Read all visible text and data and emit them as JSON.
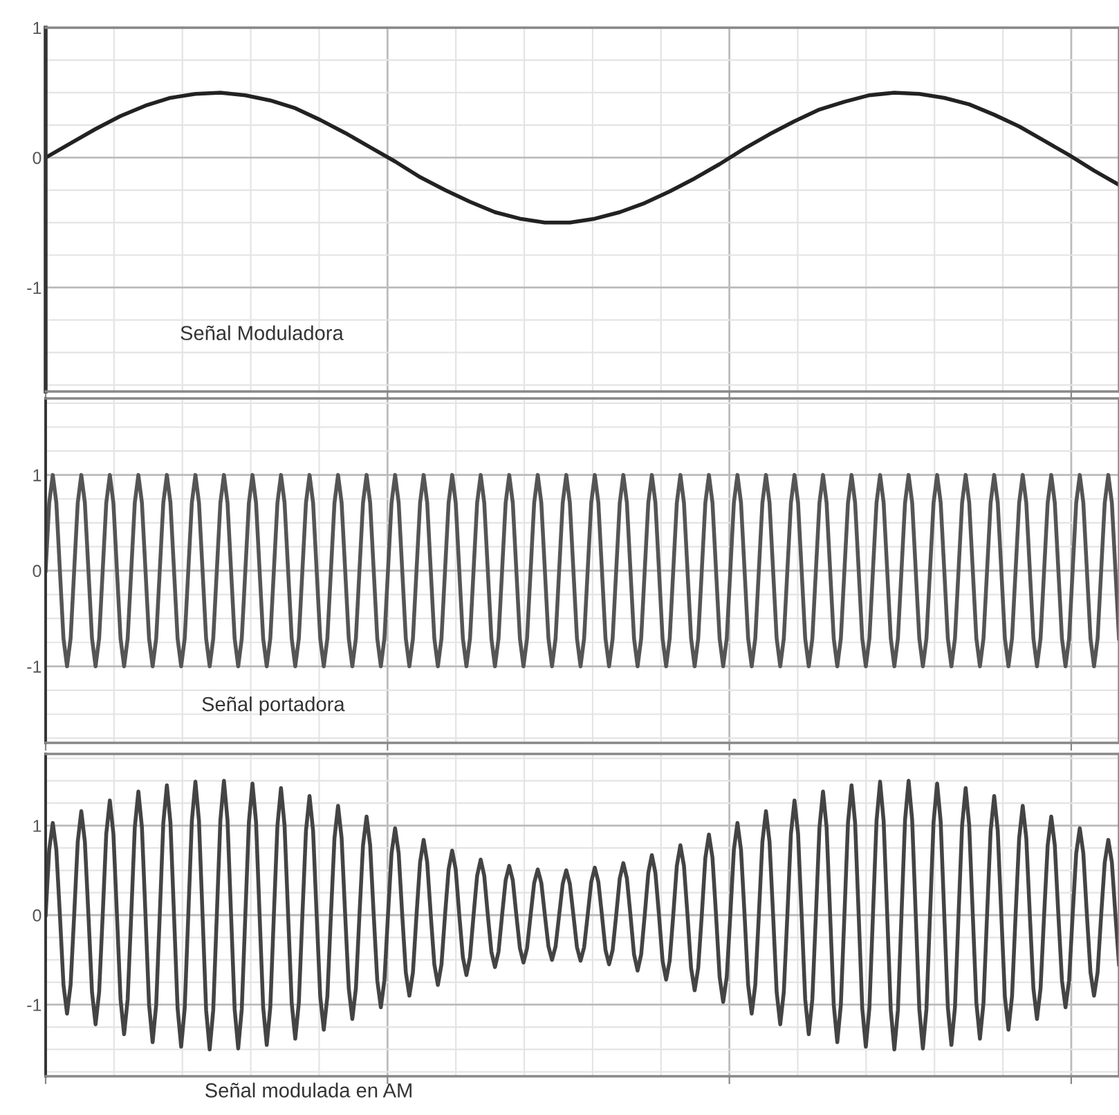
{
  "chart_data": [
    {
      "type": "line",
      "categories": [
        null,
        null,
        null,
        null,
        null,
        null,
        null,
        null,
        null,
        null,
        null,
        null,
        null,
        null,
        null,
        null,
        null,
        null,
        null,
        null,
        null,
        null,
        null,
        null,
        null,
        null,
        null,
        null,
        null,
        null,
        null,
        null,
        null,
        null,
        null,
        null,
        null,
        null,
        null,
        null,
        null,
        null,
        null,
        null
      ],
      "series": [
        {
          "color": "#222222",
          "values": [
            0,
            0.11,
            0.22,
            0.32,
            0.4,
            0.46,
            0.49,
            0.5,
            0.48,
            0.44,
            0.38,
            0.29,
            0.19,
            0.08,
            -0.03,
            -0.15,
            -0.25,
            -0.34,
            -0.42,
            -0.47,
            -0.5,
            -0.5,
            -0.47,
            -0.42,
            -0.35,
            -0.26,
            -0.16,
            -0.05,
            0.07,
            0.18,
            0.28,
            0.37,
            0.43,
            0.48,
            0.5,
            0.49,
            0.46,
            0.41,
            0.33,
            0.24,
            0.13,
            0.02,
            -0.1,
            -0.21
          ]
        }
      ],
      "ylim": [
        -1.8,
        1.0
      ],
      "yticks": [
        1,
        0,
        -1
      ],
      "grid": true,
      "tick_labels": "y",
      "annotations": [
        "Señal Moduladora"
      ]
    },
    {
      "type": "line",
      "categories": [
        null,
        null,
        null,
        null,
        null,
        null,
        null,
        null,
        null,
        null,
        null,
        null,
        null,
        null,
        null,
        null,
        null,
        null,
        null,
        null,
        null,
        null,
        null,
        null,
        null,
        null,
        null,
        null,
        null,
        null,
        null,
        null,
        null,
        null,
        null,
        null,
        null,
        null,
        null,
        null,
        null,
        null,
        null,
        null,
        null,
        null,
        null,
        null,
        null,
        null,
        null,
        null,
        null,
        null,
        null,
        null,
        null,
        null,
        null,
        null,
        null,
        null,
        null,
        null,
        null,
        null,
        null,
        null,
        null,
        null,
        null,
        null,
        null,
        null,
        null,
        null,
        null,
        null,
        null,
        null,
        null,
        null,
        null,
        null,
        null,
        null,
        null,
        null,
        null,
        null,
        null,
        null,
        null,
        null,
        null,
        null,
        null,
        null,
        null,
        null,
        null,
        null,
        null,
        null,
        null,
        null,
        null,
        null,
        null,
        null,
        null,
        null,
        null,
        null,
        null,
        null,
        null,
        null,
        null,
        null,
        null,
        null,
        null,
        null,
        null,
        null,
        null,
        null,
        null,
        null,
        null,
        null,
        null,
        null,
        null,
        null,
        null,
        null,
        null,
        null,
        null,
        null,
        null,
        null,
        null,
        null,
        null,
        null,
        null,
        null,
        null,
        null,
        null,
        null,
        null,
        null,
        null,
        null,
        null,
        null,
        null,
        null,
        null,
        null,
        null,
        null,
        null,
        null,
        null,
        null,
        null,
        null,
        null,
        null,
        null,
        null,
        null,
        null,
        null,
        null,
        null,
        null,
        null,
        null,
        null,
        null,
        null,
        null,
        null,
        null,
        null,
        null,
        null,
        null,
        null,
        null,
        null,
        null,
        null,
        null,
        null,
        null,
        null,
        null,
        null,
        null,
        null,
        null,
        null,
        null,
        null,
        null,
        null,
        null,
        null,
        null,
        null,
        null,
        null,
        null,
        null,
        null,
        null,
        null,
        null,
        null,
        null,
        null,
        null,
        null,
        null,
        null,
        null,
        null,
        null,
        null,
        null,
        null,
        null,
        null,
        null,
        null,
        null,
        null,
        null,
        null,
        null,
        null,
        null,
        null,
        null,
        null,
        null,
        null,
        null,
        null,
        null,
        null,
        null,
        null,
        null,
        null,
        null,
        null,
        null,
        null,
        null,
        null,
        null,
        null,
        null,
        null,
        null,
        null,
        null,
        null,
        null,
        null,
        null,
        null,
        null,
        null,
        null,
        null,
        null,
        null,
        null,
        null,
        null,
        null,
        null,
        null,
        null,
        null,
        null,
        null,
        null,
        null,
        null,
        null,
        null,
        null
      ],
      "series": [
        {
          "color": "#555555",
          "values": [
            0,
            0.71,
            1,
            0.71,
            0,
            -0.71,
            -1,
            -0.71,
            0,
            0.71,
            1,
            0.71,
            0,
            -0.71,
            -1,
            -0.71,
            0,
            0.71,
            1,
            0.71,
            0,
            -0.71,
            -1,
            -0.71,
            0,
            0.71,
            1,
            0.71,
            0,
            -0.71,
            -1,
            -0.71,
            0,
            0.71,
            1,
            0.71,
            0,
            -0.71,
            -1,
            -0.71,
            0,
            0.71,
            1,
            0.71,
            0,
            -0.71,
            -1,
            -0.71,
            0,
            0.71,
            1,
            0.71,
            0,
            -0.71,
            -1,
            -0.71,
            0,
            0.71,
            1,
            0.71,
            0,
            -0.71,
            -1,
            -0.71,
            0,
            0.71,
            1,
            0.71,
            0,
            -0.71,
            -1,
            -0.71,
            0,
            0.71,
            1,
            0.71,
            0,
            -0.71,
            -1,
            -0.71,
            0,
            0.71,
            1,
            0.71,
            0,
            -0.71,
            -1,
            -0.71,
            0,
            0.71,
            1,
            0.71,
            0,
            -0.71,
            -1,
            -0.71,
            0,
            0.71,
            1,
            0.71,
            0,
            -0.71,
            -1,
            -0.71,
            0,
            0.71,
            1,
            0.71,
            0,
            -0.71,
            -1,
            -0.71,
            0,
            0.71,
            1,
            0.71,
            0,
            -0.71,
            -1,
            -0.71,
            0,
            0.71,
            1,
            0.71,
            0,
            -0.71,
            -1,
            -0.71,
            0,
            0.71,
            1,
            0.71,
            0,
            -0.71,
            -1,
            -0.71,
            0,
            0.71,
            1,
            0.71,
            0,
            -0.71,
            -1,
            -0.71,
            0,
            0.71,
            1,
            0.71,
            0,
            -0.71,
            -1,
            -0.71,
            0,
            0.71,
            1,
            0.71,
            0,
            -0.71,
            -1,
            -0.71,
            0,
            0.71,
            1,
            0.71,
            0,
            -0.71,
            -1,
            -0.71,
            0,
            0.71,
            1,
            0.71,
            0,
            -0.71,
            -1,
            -0.71,
            0,
            0.71,
            1,
            0.71,
            0,
            -0.71,
            -1,
            -0.71,
            0,
            0.71,
            1,
            0.71,
            0,
            -0.71,
            -1,
            -0.71,
            0,
            0.71,
            1,
            0.71,
            0,
            -0.71,
            -1,
            -0.71,
            0,
            0.71,
            1,
            0.71,
            0,
            -0.71,
            -1,
            -0.71,
            0,
            0.71,
            1,
            0.71,
            0,
            -0.71,
            -1,
            -0.71,
            0,
            0.71,
            1,
            0.71,
            0,
            -0.71,
            -1,
            -0.71,
            0,
            0.71,
            1,
            0.71,
            0,
            -0.71,
            -1,
            -0.71,
            0,
            0.71,
            1,
            0.71,
            0,
            -0.71,
            -1,
            -0.71,
            0,
            0.71,
            1,
            0.71,
            0,
            -0.71,
            -1,
            -0.71,
            0,
            0.71,
            1,
            0.71,
            0,
            -0.71,
            -1,
            -0.71,
            0,
            0.71,
            1,
            0.71,
            0,
            -0.71,
            -1,
            -0.71,
            0,
            0.71,
            1,
            0.71,
            0,
            -0.71,
            -1,
            -0.71,
            0,
            0.71,
            1,
            0.71,
            0,
            -0.71,
            -1,
            -0.71,
            0,
            0.71,
            1,
            0.71,
            0,
            -0.71,
            -1,
            -0.71,
            0,
            0.71,
            1,
            0.71,
            0,
            -0.71,
            -1,
            -0.71,
            0,
            0.71,
            1,
            0.71,
            0,
            -0.71
          ]
        }
      ],
      "ylim": [
        -1.8,
        1.8
      ],
      "yticks": [
        1,
        0,
        -1
      ],
      "grid": true,
      "tick_labels": "y",
      "annotations": [
        "Señal portadora"
      ]
    },
    {
      "type": "line",
      "categories": [
        null,
        null,
        null,
        null,
        null,
        null,
        null,
        null,
        null,
        null,
        null,
        null,
        null,
        null,
        null,
        null,
        null,
        null,
        null,
        null,
        null,
        null,
        null,
        null,
        null,
        null,
        null,
        null,
        null,
        null,
        null,
        null,
        null,
        null,
        null,
        null,
        null,
        null,
        null,
        null,
        null,
        null,
        null,
        null,
        null,
        null,
        null,
        null,
        null,
        null,
        null,
        null,
        null,
        null,
        null,
        null,
        null,
        null,
        null,
        null,
        null,
        null,
        null,
        null,
        null,
        null,
        null,
        null,
        null,
        null,
        null,
        null,
        null,
        null,
        null,
        null,
        null,
        null,
        null,
        null,
        null,
        null,
        null,
        null,
        null,
        null,
        null,
        null,
        null,
        null,
        null,
        null,
        null,
        null,
        null,
        null,
        null,
        null,
        null,
        null,
        null,
        null,
        null,
        null,
        null,
        null,
        null,
        null,
        null,
        null,
        null,
        null,
        null,
        null,
        null,
        null,
        null,
        null,
        null,
        null,
        null,
        null,
        null,
        null,
        null,
        null,
        null,
        null,
        null,
        null,
        null,
        null,
        null,
        null,
        null,
        null,
        null,
        null,
        null,
        null,
        null,
        null,
        null,
        null,
        null,
        null,
        null,
        null,
        null,
        null,
        null,
        null,
        null,
        null,
        null,
        null,
        null,
        null,
        null,
        null,
        null,
        null,
        null,
        null,
        null,
        null,
        null,
        null,
        null,
        null,
        null,
        null,
        null,
        null,
        null,
        null,
        null,
        null,
        null,
        null,
        null,
        null,
        null,
        null,
        null,
        null,
        null,
        null,
        null,
        null,
        null,
        null,
        null,
        null,
        null,
        null,
        null,
        null,
        null,
        null,
        null,
        null,
        null,
        null,
        null,
        null,
        null,
        null,
        null,
        null,
        null,
        null,
        null,
        null,
        null,
        null,
        null,
        null,
        null,
        null,
        null,
        null,
        null,
        null,
        null,
        null,
        null,
        null,
        null,
        null,
        null,
        null,
        null,
        null,
        null,
        null,
        null,
        null,
        null,
        null,
        null,
        null,
        null,
        null,
        null,
        null,
        null,
        null,
        null,
        null,
        null,
        null,
        null,
        null,
        null,
        null,
        null,
        null,
        null,
        null,
        null,
        null,
        null,
        null,
        null,
        null,
        null,
        null,
        null,
        null,
        null,
        null,
        null,
        null,
        null,
        null,
        null,
        null,
        null,
        null,
        null,
        null,
        null,
        null,
        null,
        null,
        null,
        null,
        null,
        null,
        null,
        null,
        null,
        null,
        null,
        null,
        null,
        null,
        null,
        null,
        null,
        null
      ],
      "series": [
        {
          "color": "#444444",
          "values": [
            0,
            0.73,
            1.03,
            0.73,
            0,
            -0.78,
            -1.1,
            -0.78,
            0,
            0.82,
            1.16,
            0.82,
            0,
            -0.86,
            -1.22,
            -0.86,
            0,
            0.91,
            1.28,
            0.91,
            0,
            -0.94,
            -1.33,
            -0.94,
            0,
            0.98,
            1.38,
            0.98,
            0,
            -1,
            -1.42,
            -1,
            0,
            1.03,
            1.45,
            1.03,
            0,
            -1.04,
            -1.47,
            -1.04,
            0,
            1.05,
            1.49,
            1.05,
            0,
            -1.06,
            -1.5,
            -1.06,
            0,
            1.06,
            1.5,
            1.06,
            0,
            -1.05,
            -1.49,
            -1.05,
            0,
            1.04,
            1.47,
            1.04,
            0,
            -1.03,
            -1.45,
            -1.03,
            0,
            1,
            1.42,
            1,
            0,
            -0.98,
            -1.38,
            -0.98,
            0,
            0.94,
            1.33,
            0.94,
            0,
            -0.91,
            -1.28,
            -0.91,
            0,
            0.86,
            1.22,
            0.86,
            0,
            -0.82,
            -1.16,
            -0.82,
            0,
            0.78,
            1.1,
            0.78,
            0,
            -0.73,
            -1.03,
            -0.73,
            0,
            0.69,
            0.97,
            0.69,
            0,
            -0.64,
            -0.9,
            -0.64,
            0,
            0.59,
            0.84,
            0.59,
            0,
            -0.55,
            -0.78,
            -0.55,
            0,
            0.51,
            0.72,
            0.51,
            0,
            -0.47,
            -0.67,
            -0.47,
            0,
            0.44,
            0.62,
            0.44,
            0,
            -0.41,
            -0.58,
            -0.41,
            0,
            0.39,
            0.55,
            0.39,
            0,
            -0.37,
            -0.53,
            -0.37,
            0,
            0.36,
            0.51,
            0.36,
            0,
            -0.35,
            -0.5,
            -0.35,
            0,
            0.35,
            0.5,
            0.35,
            0,
            -0.36,
            -0.51,
            -0.36,
            0,
            0.37,
            0.53,
            0.37,
            0,
            -0.39,
            -0.55,
            -0.39,
            0,
            0.41,
            0.58,
            0.41,
            0,
            -0.44,
            -0.62,
            -0.44,
            0,
            0.47,
            0.67,
            0.47,
            0,
            -0.51,
            -0.72,
            -0.51,
            0,
            0.55,
            0.78,
            0.55,
            0,
            -0.59,
            -0.84,
            -0.59,
            0,
            0.64,
            0.9,
            0.64,
            0,
            -0.69,
            -0.97,
            -0.69,
            0,
            0.73,
            1.03,
            0.73,
            0,
            -0.78,
            -1.1,
            -0.78,
            0,
            0.82,
            1.16,
            0.82,
            0,
            -0.86,
            -1.22,
            -0.86,
            0,
            0.91,
            1.28,
            0.91,
            0,
            -0.94,
            -1.33,
            -0.94,
            0,
            0.98,
            1.38,
            0.98,
            0,
            -1,
            -1.42,
            -1,
            0,
            1.03,
            1.45,
            1.03,
            0,
            -1.04,
            -1.47,
            -1.04,
            0,
            1.05,
            1.49,
            1.05,
            0,
            -1.06,
            -1.5,
            -1.06,
            0,
            1.06,
            1.5,
            1.06,
            0,
            -1.05,
            -1.49,
            -1.05,
            0,
            1.04,
            1.47,
            1.04,
            0,
            -1.03,
            -1.45,
            -1.03,
            0,
            1,
            1.42,
            1,
            0,
            -0.98,
            -1.38,
            -0.98,
            0,
            0.94,
            1.33,
            0.94,
            0,
            -0.91,
            -1.28,
            -0.91,
            0,
            0.86,
            1.22,
            0.86,
            0,
            -0.82,
            -1.16,
            -0.82,
            0,
            0.78,
            1.1,
            0.78,
            0,
            -0.73,
            -1.03,
            -0.73,
            0,
            0.69,
            0.97,
            0.69,
            0,
            -0.64,
            -0.9,
            -0.64,
            0,
            0.59,
            0.84,
            0.59,
            0,
            -0.55
          ]
        }
      ],
      "ylim": [
        -1.8,
        1.8
      ],
      "yticks": [
        1,
        0,
        -1
      ],
      "grid": true,
      "tick_labels": "y",
      "annotations": [
        "Señal modulada en AM"
      ]
    }
  ]
}
